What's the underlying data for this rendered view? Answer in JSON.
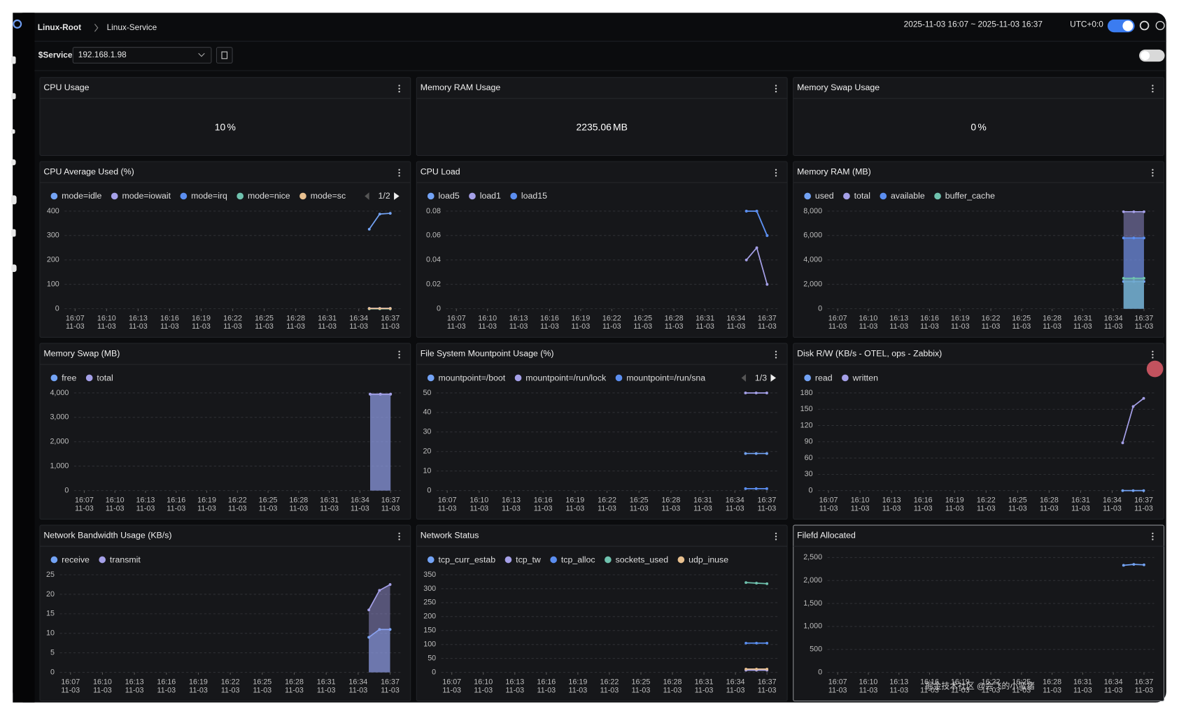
{
  "header": {
    "breadcrumb": [
      "Linux-Root",
      "Linux-Service"
    ],
    "time_range": "2025-11-03 16:07 ~ 2025-11-03 16:37",
    "timezone": "UTC+0:0"
  },
  "toolbar": {
    "variable_label": "$Service",
    "variable_value": "192.168.1.98"
  },
  "stats": [
    {
      "title": "CPU Usage",
      "value": 10,
      "unit": "%"
    },
    {
      "title": "Memory RAM Usage",
      "value": 2235.06,
      "unit": "MB"
    },
    {
      "title": "Memory Swap Usage",
      "value": 0,
      "unit": "%"
    }
  ],
  "chart_data": [
    {
      "type": "line",
      "title": "CPU Average Used (%)",
      "legend_page": "1/2",
      "x_date": "11-03",
      "xticks": [
        "16:07",
        "16:10",
        "16:13",
        "16:16",
        "16:19",
        "16:22",
        "16:25",
        "16:28",
        "16:31",
        "16:34",
        "16:37"
      ],
      "xlim": [
        "16:06",
        "16:38"
      ],
      "x": [
        "16:35",
        "16:36",
        "16:37"
      ],
      "ylim": [
        0,
        400
      ],
      "yticks": [
        0,
        100,
        200,
        300,
        400
      ],
      "grid": true,
      "series": [
        {
          "name": "mode=idle",
          "color": "#73a3f5",
          "values": [
            326,
            388,
            391
          ]
        },
        {
          "name": "mode=iowait",
          "color": "#a5a0e8",
          "values": [
            2,
            2,
            2
          ]
        },
        {
          "name": "mode=irq",
          "color": "#5b8ef0",
          "values": [
            0,
            0,
            0
          ]
        },
        {
          "name": "mode=nice",
          "color": "#6fc2ae",
          "values": [
            0,
            0,
            0
          ]
        },
        {
          "name": "mode=sc",
          "color": "#e8c08f",
          "values": [
            1,
            1,
            1
          ]
        }
      ]
    },
    {
      "type": "line",
      "title": "CPU Load",
      "x_date": "11-03",
      "xticks": [
        "16:07",
        "16:10",
        "16:13",
        "16:16",
        "16:19",
        "16:22",
        "16:25",
        "16:28",
        "16:31",
        "16:34",
        "16:37"
      ],
      "xlim": [
        "16:06",
        "16:38"
      ],
      "x": [
        "16:35",
        "16:36",
        "16:37"
      ],
      "ylim": [
        0,
        0.08
      ],
      "yticks": [
        0,
        0.02,
        0.04,
        0.06,
        0.08
      ],
      "grid": true,
      "series": [
        {
          "name": "load5",
          "color": "#73a3f5",
          "values": [
            0.08,
            0.08,
            0.06
          ]
        },
        {
          "name": "load1",
          "color": "#a5a0e8",
          "values": [
            0.04,
            0.05,
            0.02
          ]
        },
        {
          "name": "load15",
          "color": "#5b8ef0",
          "values": [
            0.08,
            0.08,
            0.06
          ]
        }
      ]
    },
    {
      "type": "area",
      "title": "Memory RAM (MB)",
      "x_date": "11-03",
      "xticks": [
        "16:07",
        "16:10",
        "16:13",
        "16:16",
        "16:19",
        "16:22",
        "16:25",
        "16:28",
        "16:31",
        "16:34",
        "16:37"
      ],
      "xlim": [
        "16:06",
        "16:38"
      ],
      "x": [
        "16:35",
        "16:36",
        "16:37"
      ],
      "ylim": [
        0,
        8000
      ],
      "yticks": [
        0,
        {
          "value": 2000,
          "label": "2,000"
        },
        {
          "value": 4000,
          "label": "4,000"
        },
        {
          "value": 6000,
          "label": "6,000"
        },
        {
          "value": 8000,
          "label": "8,000"
        }
      ],
      "grid": true,
      "series": [
        {
          "name": "used",
          "color": "#73a3f5",
          "values": [
            2235,
            2235,
            2235
          ]
        },
        {
          "name": "total",
          "color": "#a5a0e8",
          "values": [
            7950,
            7950,
            7950
          ]
        },
        {
          "name": "available",
          "color": "#5b8ef0",
          "values": [
            5800,
            5800,
            5800
          ]
        },
        {
          "name": "buffer_cache",
          "color": "#6fc2ae",
          "values": [
            2500,
            2500,
            2500
          ]
        }
      ]
    },
    {
      "type": "area",
      "title": "Memory Swap (MB)",
      "x_date": "11-03",
      "xticks": [
        "16:07",
        "16:10",
        "16:13",
        "16:16",
        "16:19",
        "16:22",
        "16:25",
        "16:28",
        "16:31",
        "16:34",
        "16:37"
      ],
      "xlim": [
        "16:06",
        "16:38"
      ],
      "x": [
        "16:35",
        "16:36",
        "16:37"
      ],
      "ylim": [
        0,
        4000
      ],
      "yticks": [
        0,
        {
          "value": 1000,
          "label": "1,000"
        },
        {
          "value": 2000,
          "label": "2,000"
        },
        {
          "value": 3000,
          "label": "3,000"
        },
        {
          "value": 4000,
          "label": "4,000"
        }
      ],
      "grid": true,
      "series": [
        {
          "name": "free",
          "color": "#73a3f5",
          "values": [
            3950,
            3950,
            3950
          ]
        },
        {
          "name": "total",
          "color": "#a5a0e8",
          "values": [
            3950,
            3950,
            3950
          ]
        }
      ]
    },
    {
      "type": "line",
      "title": "File System Mountpoint Usage (%)",
      "legend_page": "1/3",
      "x_date": "11-03",
      "xticks": [
        "16:07",
        "16:10",
        "16:13",
        "16:16",
        "16:19",
        "16:22",
        "16:25",
        "16:28",
        "16:31",
        "16:34",
        "16:37"
      ],
      "xlim": [
        "16:06",
        "16:38"
      ],
      "x": [
        "16:35",
        "16:36",
        "16:37"
      ],
      "ylim": [
        0,
        50
      ],
      "yticks": [
        0,
        10,
        20,
        30,
        40,
        50
      ],
      "grid": true,
      "series": [
        {
          "name": "mountpoint=/boot",
          "color": "#73a3f5",
          "values": [
            19,
            19,
            19
          ]
        },
        {
          "name": "mountpoint=/run/lock",
          "color": "#a5a0e8",
          "values": [
            50,
            50,
            50
          ]
        },
        {
          "name": "mountpoint=/run/sna",
          "color": "#5b8ef0",
          "values": [
            1,
            1,
            1
          ]
        }
      ]
    },
    {
      "type": "line",
      "title": "Disk R/W (KB/s - OTEL, ops - Zabbix)",
      "x_date": "11-03",
      "xticks": [
        "16:07",
        "16:10",
        "16:13",
        "16:16",
        "16:19",
        "16:22",
        "16:25",
        "16:28",
        "16:31",
        "16:34",
        "16:37"
      ],
      "xlim": [
        "16:06",
        "16:38"
      ],
      "x": [
        "16:35",
        "16:36",
        "16:37"
      ],
      "ylim": [
        0,
        180
      ],
      "yticks": [
        0,
        30,
        60,
        90,
        120,
        150,
        180
      ],
      "grid": true,
      "series": [
        {
          "name": "read",
          "color": "#73a3f5",
          "values": [
            0,
            0,
            0
          ]
        },
        {
          "name": "written",
          "color": "#a5a0e8",
          "values": [
            88,
            155,
            170
          ]
        }
      ]
    },
    {
      "type": "area",
      "title": "Network Bandwidth Usage (KB/s)",
      "x_date": "11-03",
      "xticks": [
        "16:07",
        "16:10",
        "16:13",
        "16:16",
        "16:19",
        "16:22",
        "16:25",
        "16:28",
        "16:31",
        "16:34",
        "16:37"
      ],
      "xlim": [
        "16:06",
        "16:38"
      ],
      "x": [
        "16:35",
        "16:36",
        "16:37"
      ],
      "ylim": [
        0,
        25
      ],
      "yticks": [
        0,
        5,
        10,
        15,
        20,
        25
      ],
      "grid": true,
      "series": [
        {
          "name": "receive",
          "color": "#73a3f5",
          "values": [
            9,
            11,
            11
          ]
        },
        {
          "name": "transmit",
          "color": "#a5a0e8",
          "values": [
            16,
            21,
            22.5
          ]
        }
      ]
    },
    {
      "type": "line",
      "title": "Network Status",
      "x_date": "11-03",
      "xticks": [
        "16:07",
        "16:10",
        "16:13",
        "16:16",
        "16:19",
        "16:22",
        "16:25",
        "16:28",
        "16:31",
        "16:34",
        "16:37"
      ],
      "xlim": [
        "16:06",
        "16:38"
      ],
      "x": [
        "16:35",
        "16:36",
        "16:37"
      ],
      "ylim": [
        0,
        350
      ],
      "yticks": [
        0,
        50,
        100,
        150,
        200,
        250,
        300,
        350
      ],
      "grid": true,
      "series": [
        {
          "name": "tcp_curr_estab",
          "color": "#73a3f5",
          "values": [
            10,
            10,
            10
          ]
        },
        {
          "name": "tcp_tw",
          "color": "#a5a0e8",
          "values": [
            8,
            8,
            8
          ]
        },
        {
          "name": "tcp_alloc",
          "color": "#5b8ef0",
          "values": [
            105,
            105,
            105
          ]
        },
        {
          "name": "sockets_used",
          "color": "#6fc2ae",
          "values": [
            322,
            320,
            318
          ]
        },
        {
          "name": "udp_inuse",
          "color": "#e8c08f",
          "values": [
            12,
            12,
            12
          ]
        }
      ]
    },
    {
      "type": "line",
      "title": "Filefd Allocated",
      "x_date": "11-03",
      "xticks": [
        "16:07",
        "16:10",
        "16:13",
        "16:16",
        "16:19",
        "16:22",
        "16:25",
        "16:28",
        "16:31",
        "16:34",
        "16:37"
      ],
      "xlim": [
        "16:06",
        "16:38"
      ],
      "x": [
        "16:35",
        "16:36",
        "16:37"
      ],
      "ylim": [
        0,
        2500
      ],
      "yticks": [
        0,
        500,
        {
          "value": 1000,
          "label": "1,000"
        },
        {
          "value": 1500,
          "label": "1,500"
        },
        {
          "value": 2000,
          "label": "2,000"
        },
        {
          "value": 2500,
          "label": "2,500"
        }
      ],
      "grid": true,
      "series": [
        {
          "color": "#73a3f5",
          "values": [
            2330,
            2350,
            2340
          ]
        }
      ]
    }
  ],
  "watermark": "掘金技术社区 @会飞的小蛮猪"
}
